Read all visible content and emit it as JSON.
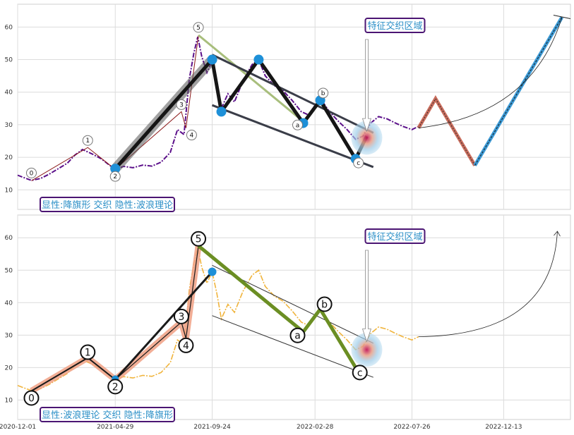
{
  "chart_data": [
    {
      "type": "line",
      "ylim": [
        4,
        67
      ],
      "yticks": [
        10,
        20,
        30,
        40,
        50,
        60
      ],
      "xlim": [
        "2020-12-01",
        "2023-03-25"
      ],
      "xticks": [
        "2020-12-01",
        "2021-04-29",
        "2021-09-24",
        "2022-02-28",
        "2022-07-26",
        "2022-12-13"
      ],
      "grid": true,
      "legend_box": "显性:降旗形 交织 隐性:波浪理论",
      "annotation": "特征交织区域",
      "price": [
        [
          "2020-12-01",
          14.5
        ],
        [
          "2020-12-10",
          13.8
        ],
        [
          "2020-12-22",
          12.9
        ],
        [
          "2021-01-05",
          13.5
        ],
        [
          "2021-01-18",
          14.8
        ],
        [
          "2021-02-01",
          16.5
        ],
        [
          "2021-02-15",
          18.2
        ],
        [
          "2021-02-26",
          20.6
        ],
        [
          "2021-03-10",
          22.4
        ],
        [
          "2021-03-25",
          21.0
        ],
        [
          "2021-04-08",
          19.5
        ],
        [
          "2021-04-20",
          17.6
        ],
        [
          "2021-04-29",
          16.4
        ],
        [
          "2021-05-12",
          17.2
        ],
        [
          "2021-05-26",
          16.8
        ],
        [
          "2021-06-10",
          17.6
        ],
        [
          "2021-06-24",
          17.3
        ],
        [
          "2021-07-08",
          18.5
        ],
        [
          "2021-07-22",
          21.5
        ],
        [
          "2021-08-02",
          28.5
        ],
        [
          "2021-08-12",
          27.0
        ],
        [
          "2021-08-20",
          44.0
        ],
        [
          "2021-08-27",
          52.0
        ],
        [
          "2021-09-02",
          57.0
        ],
        [
          "2021-09-08",
          51.0
        ],
        [
          "2021-09-16",
          46.0
        ],
        [
          "2021-09-24",
          49.5
        ],
        [
          "2021-10-01",
          43.0
        ],
        [
          "2021-10-08",
          35.0
        ],
        [
          "2021-10-18",
          39.5
        ],
        [
          "2021-10-28",
          37.0
        ],
        [
          "2021-11-10",
          43.5
        ],
        [
          "2021-11-24",
          48.5
        ],
        [
          "2021-12-04",
          50.0
        ],
        [
          "2021-12-14",
          45.0
        ],
        [
          "2021-12-28",
          42.0
        ],
        [
          "2022-01-10",
          40.5
        ],
        [
          "2022-01-24",
          37.5
        ],
        [
          "2022-02-07",
          34.0
        ],
        [
          "2022-02-18",
          33.0
        ],
        [
          "2022-02-28",
          36.0
        ],
        [
          "2022-03-10",
          37.5
        ],
        [
          "2022-03-22",
          34.0
        ],
        [
          "2022-04-05",
          31.0
        ],
        [
          "2022-04-18",
          28.5
        ],
        [
          "2022-05-01",
          25.5
        ],
        [
          "2022-05-12",
          26.5
        ],
        [
          "2022-05-24",
          30.5
        ],
        [
          "2022-06-05",
          32.5
        ],
        [
          "2022-06-18",
          31.8
        ],
        [
          "2022-07-01",
          30.5
        ],
        [
          "2022-07-12",
          29.5
        ],
        [
          "2022-07-26",
          28.5
        ],
        [
          "2022-08-05",
          29.5
        ]
      ],
      "waves": {
        "labels": [
          "0",
          "1",
          "2",
          "3",
          "4",
          "5",
          "a",
          "b",
          "c"
        ],
        "points": [
          [
            "2020-12-22",
            12.8
          ],
          [
            "2021-03-18",
            23.0
          ],
          [
            "2021-04-29",
            16.3
          ],
          [
            "2021-08-08",
            34.0
          ],
          [
            "2021-08-15",
            29.0
          ],
          [
            "2021-09-03",
            57.5
          ],
          [
            "2022-02-10",
            31.0
          ],
          [
            "2022-03-08",
            38.0
          ],
          [
            "2022-05-01",
            20.0
          ]
        ]
      },
      "flag_upper": [
        [
          "2021-09-24",
          51.5
        ],
        [
          "2022-05-28",
          27.5
        ]
      ],
      "flag_lower": [
        [
          "2021-09-24",
          36.0
        ],
        [
          "2022-05-28",
          17.0
        ]
      ],
      "thick_path": [
        [
          "2021-04-29",
          16.5
        ],
        [
          "2021-09-24",
          50.0
        ],
        [
          "2021-10-08",
          34.0
        ],
        [
          "2021-12-04",
          50.0
        ],
        [
          "2022-02-10",
          30.5
        ],
        [
          "2022-03-08",
          37.5
        ],
        [
          "2022-05-01",
          19.5
        ],
        [
          "2022-05-18",
          26.5
        ]
      ],
      "projection": [
        [
          "2022-08-05",
          29.0
        ],
        [
          "2022-08-31",
          38.0
        ],
        [
          "2022-10-30",
          17.5
        ],
        [
          "2023-03-12",
          63.0
        ]
      ]
    },
    {
      "type": "line",
      "ylim": [
        4,
        67
      ],
      "yticks": [
        10,
        20,
        30,
        40,
        50,
        60
      ],
      "xlim": [
        "2020-12-01",
        "2023-03-25"
      ],
      "xticks": [
        "2020-12-01",
        "2021-04-29",
        "2021-09-24",
        "2022-02-28",
        "2022-07-26",
        "2022-12-13"
      ],
      "xticklabels": [
        "2020-12-01",
        "2021-04-29",
        "2021-09-24",
        "2022-02-28",
        "2022-07-26",
        "2022-12-13"
      ],
      "grid": true,
      "legend_box": "显性:波浪理论 交织 隐性:降旗形",
      "annotation": "特征交织区域",
      "price": [
        [
          "2020-12-01",
          14.5
        ],
        [
          "2020-12-10",
          13.8
        ],
        [
          "2020-12-22",
          12.9
        ],
        [
          "2021-01-05",
          13.5
        ],
        [
          "2021-01-18",
          14.8
        ],
        [
          "2021-02-01",
          16.5
        ],
        [
          "2021-02-15",
          18.2
        ],
        [
          "2021-02-26",
          20.6
        ],
        [
          "2021-03-10",
          22.4
        ],
        [
          "2021-03-25",
          21.0
        ],
        [
          "2021-04-08",
          19.5
        ],
        [
          "2021-04-20",
          17.6
        ],
        [
          "2021-04-29",
          16.4
        ],
        [
          "2021-05-12",
          17.2
        ],
        [
          "2021-05-26",
          16.8
        ],
        [
          "2021-06-10",
          17.6
        ],
        [
          "2021-06-24",
          17.3
        ],
        [
          "2021-07-08",
          18.5
        ],
        [
          "2021-07-22",
          21.5
        ],
        [
          "2021-08-02",
          28.5
        ],
        [
          "2021-08-12",
          27.0
        ],
        [
          "2021-08-20",
          44.0
        ],
        [
          "2021-08-27",
          52.0
        ],
        [
          "2021-09-02",
          57.0
        ],
        [
          "2021-09-08",
          51.0
        ],
        [
          "2021-09-16",
          46.0
        ],
        [
          "2021-09-24",
          49.5
        ],
        [
          "2021-10-01",
          43.0
        ],
        [
          "2021-10-08",
          35.0
        ],
        [
          "2021-10-18",
          39.5
        ],
        [
          "2021-10-28",
          37.0
        ],
        [
          "2021-11-10",
          43.5
        ],
        [
          "2021-11-24",
          48.5
        ],
        [
          "2021-12-04",
          50.0
        ],
        [
          "2021-12-14",
          45.0
        ],
        [
          "2021-12-28",
          42.0
        ],
        [
          "2022-01-10",
          40.5
        ],
        [
          "2022-01-24",
          37.5
        ],
        [
          "2022-02-07",
          34.0
        ],
        [
          "2022-02-18",
          33.0
        ],
        [
          "2022-02-28",
          36.0
        ],
        [
          "2022-03-10",
          37.5
        ],
        [
          "2022-03-22",
          34.0
        ],
        [
          "2022-04-05",
          31.0
        ],
        [
          "2022-04-18",
          28.5
        ],
        [
          "2022-05-01",
          25.5
        ],
        [
          "2022-05-12",
          26.5
        ],
        [
          "2022-05-24",
          30.5
        ],
        [
          "2022-06-05",
          32.5
        ],
        [
          "2022-06-18",
          31.8
        ],
        [
          "2022-07-01",
          30.5
        ],
        [
          "2022-07-12",
          29.5
        ],
        [
          "2022-07-26",
          28.5
        ],
        [
          "2022-08-05",
          29.5
        ]
      ],
      "waves": {
        "labels": [
          "0",
          "1",
          "2",
          "3",
          "4",
          "5",
          "a",
          "b",
          "c"
        ],
        "points": [
          [
            "2020-12-22",
            12.8
          ],
          [
            "2021-03-18",
            23.0
          ],
          [
            "2021-04-29",
            16.3
          ],
          [
            "2021-08-08",
            34.0
          ],
          [
            "2021-08-15",
            29.0
          ],
          [
            "2021-09-03",
            57.5
          ],
          [
            "2022-02-10",
            31.0
          ],
          [
            "2022-03-08",
            38.0
          ],
          [
            "2022-05-01",
            20.0
          ]
        ]
      },
      "flag_upper": [
        [
          "2021-09-24",
          51.5
        ],
        [
          "2022-05-28",
          27.5
        ]
      ],
      "flag_lower": [
        [
          "2021-09-24",
          36.0
        ],
        [
          "2022-05-28",
          17.0
        ]
      ],
      "impulse_path": [
        [
          "2020-12-22",
          12.8
        ],
        [
          "2021-03-18",
          23.0
        ],
        [
          "2021-04-29",
          16.3
        ],
        [
          "2021-08-08",
          34.0
        ],
        [
          "2021-08-15",
          29.0
        ],
        [
          "2021-09-03",
          57.5
        ]
      ],
      "correction_path": [
        [
          "2021-09-03",
          57.5
        ],
        [
          "2022-02-10",
          31.0
        ],
        [
          "2022-03-08",
          38.0
        ],
        [
          "2022-05-01",
          20.0
        ]
      ]
    }
  ]
}
